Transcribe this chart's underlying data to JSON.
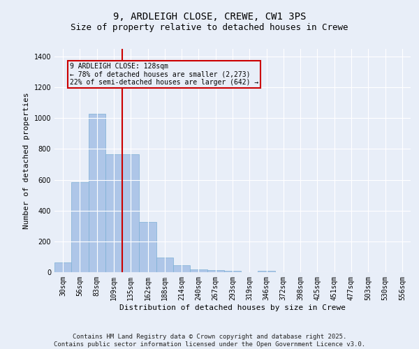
{
  "title": "9, ARDLEIGH CLOSE, CREWE, CW1 3PS",
  "subtitle": "Size of property relative to detached houses in Crewe",
  "xlabel": "Distribution of detached houses by size in Crewe",
  "ylabel": "Number of detached properties",
  "categories": [
    "30sqm",
    "56sqm",
    "83sqm",
    "109sqm",
    "135sqm",
    "162sqm",
    "188sqm",
    "214sqm",
    "240sqm",
    "267sqm",
    "293sqm",
    "319sqm",
    "346sqm",
    "372sqm",
    "398sqm",
    "425sqm",
    "451sqm",
    "477sqm",
    "503sqm",
    "530sqm",
    "556sqm"
  ],
  "values": [
    65,
    585,
    1030,
    765,
    765,
    325,
    95,
    45,
    20,
    13,
    8,
    0,
    10,
    0,
    0,
    0,
    0,
    0,
    0,
    0,
    0
  ],
  "bar_color": "#aec6e8",
  "bar_edge_color": "#7bafd4",
  "vline_color": "#cc0000",
  "annotation_lines": [
    "9 ARDLEIGH CLOSE: 128sqm",
    "← 78% of detached houses are smaller (2,273)",
    "22% of semi-detached houses are larger (642) →"
  ],
  "annotation_box_color": "#cc0000",
  "ylim": [
    0,
    1450
  ],
  "yticks": [
    0,
    200,
    400,
    600,
    800,
    1000,
    1200,
    1400
  ],
  "background_color": "#e8eef8",
  "grid_color": "#ffffff",
  "footer": "Contains HM Land Registry data © Crown copyright and database right 2025.\nContains public sector information licensed under the Open Government Licence v3.0.",
  "title_fontsize": 10,
  "subtitle_fontsize": 9,
  "xlabel_fontsize": 8,
  "ylabel_fontsize": 8,
  "tick_fontsize": 7,
  "footer_fontsize": 6.5,
  "annot_fontsize": 7
}
